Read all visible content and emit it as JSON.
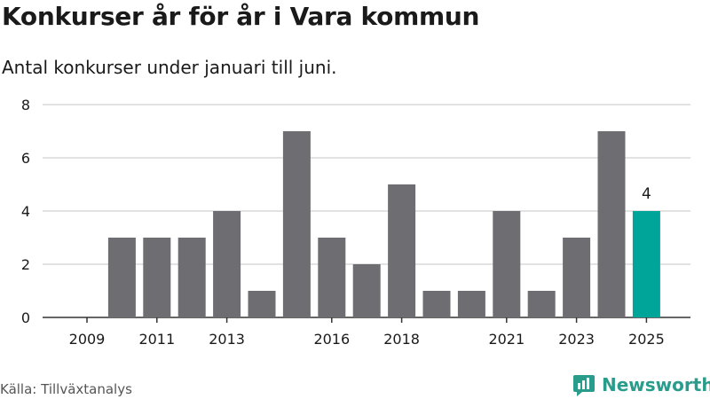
{
  "header": {
    "title": "Konkurser år för år i Vara kommun",
    "subtitle": "Antal konkurser under januari till juni."
  },
  "footer": {
    "source": "Källa: Tillväxtanalys",
    "brand": "Newsworthy"
  },
  "colors": {
    "bar": "#6e6d72",
    "highlight": "#00a59a",
    "grid": "#d9d9d9",
    "brand": "#2a9c8c"
  },
  "icons": {
    "brand_logo": "newsworthy-logo-icon"
  },
  "chart_data": {
    "type": "bar",
    "title": "Konkurser år för år i Vara kommun",
    "subtitle": "Antal konkurser under januari till juni.",
    "categories": [
      "2009",
      "2010",
      "2011",
      "2012",
      "2013",
      "2014",
      "2015",
      "2016",
      "2017",
      "2018",
      "2019",
      "2020",
      "2021",
      "2022",
      "2023",
      "2024",
      "2025"
    ],
    "values": [
      0,
      3,
      3,
      3,
      4,
      1,
      7,
      3,
      2,
      5,
      1,
      1,
      4,
      1,
      3,
      7,
      4
    ],
    "x_tick_labels": [
      "2009",
      "2011",
      "2013",
      "2016",
      "2018",
      "2021",
      "2023",
      "2025"
    ],
    "y_ticks": [
      0,
      2,
      4,
      6,
      8
    ],
    "ylim": [
      0,
      8
    ],
    "highlight_category": "2025",
    "highlight_label": "4",
    "grid": true,
    "legend": "none"
  }
}
